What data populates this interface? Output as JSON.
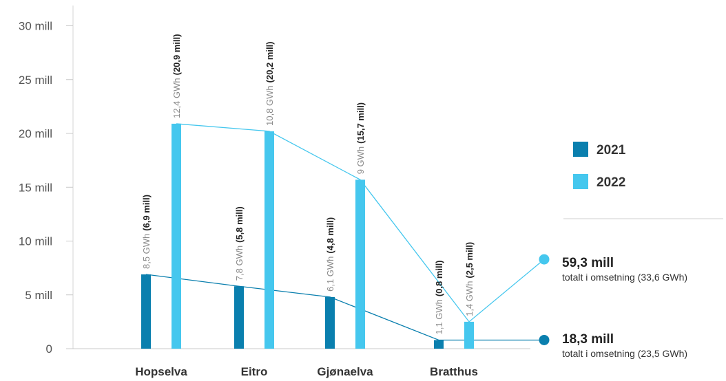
{
  "chart_data": {
    "type": "bar",
    "categories": [
      "Hopselva",
      "Eitro",
      "Gjønaelva",
      "Bratthus"
    ],
    "y_ticks": [
      "0",
      "5 mill",
      "10 mill",
      "15 mill",
      "20 mill",
      "25 mill",
      "30 mill"
    ],
    "ylim": [
      0,
      32
    ],
    "series": [
      {
        "name": "2021",
        "color": "#0a7fae",
        "values": [
          6.9,
          5.8,
          4.8,
          0.8
        ],
        "gwh_labels": [
          "8,5 GWh",
          "7,8 GWh",
          "6,1 GWh",
          "1,1 GWh"
        ],
        "value_labels": [
          "(6,9 mill)",
          "(5,8 mill)",
          "(4,8 mill)",
          "(0,8 mill)"
        ]
      },
      {
        "name": "2022",
        "color": "#45c7ee",
        "values": [
          20.9,
          20.2,
          15.7,
          2.5
        ],
        "gwh_labels": [
          "12,4 GWh",
          "10,8 GWh",
          "9 GWh",
          "1,4 GWh"
        ],
        "value_labels": [
          "(20,9 mill)",
          "(20,2 mill)",
          "(15,7 mill)",
          "(2,5 mill)"
        ]
      }
    ],
    "totals": [
      {
        "series": "2022",
        "value": 8.3,
        "label": "59,3 mill",
        "note": "totalt i omsetning (33,6 GWh)"
      },
      {
        "series": "2021",
        "value": 0.8,
        "label": "18,3 mill",
        "note": "totalt i omsetning (23,5 GWh)"
      }
    ],
    "legend_position": "right"
  }
}
